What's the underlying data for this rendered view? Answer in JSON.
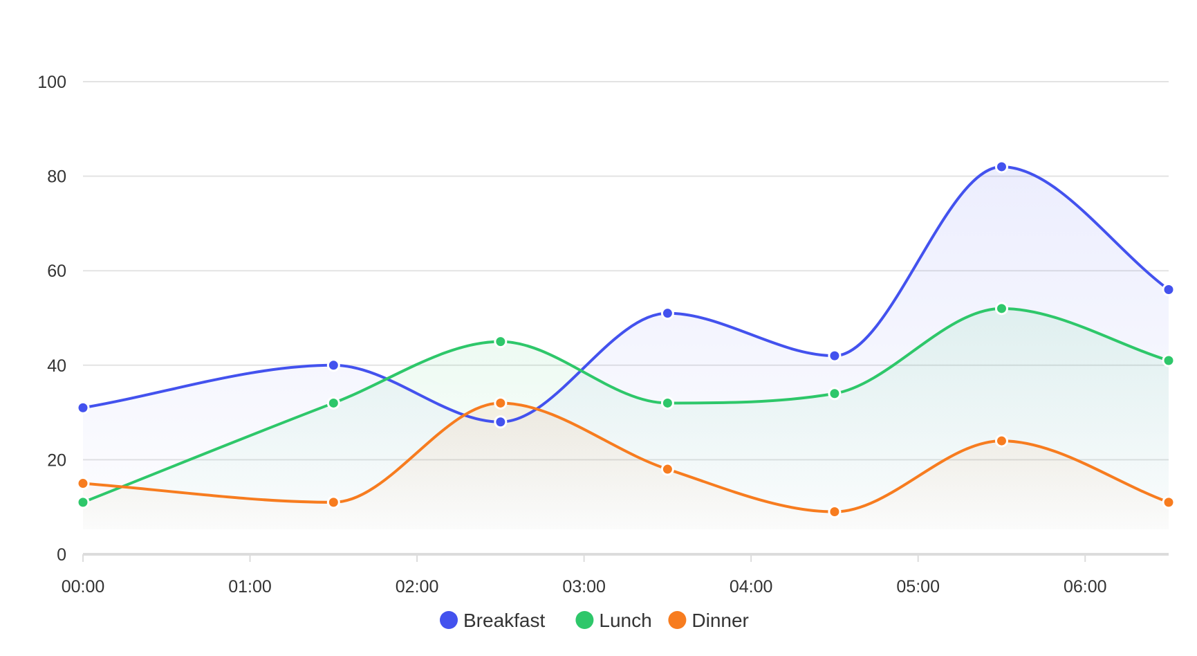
{
  "chart_data": {
    "type": "area",
    "x": [
      "00:00",
      "01:30",
      "02:30",
      "03:30",
      "04:30",
      "05:30",
      "06:30"
    ],
    "x_ticks": [
      "00:00",
      "01:00",
      "02:00",
      "03:00",
      "04:00",
      "05:00",
      "06:00"
    ],
    "y_ticks": [
      0,
      20,
      40,
      60,
      80,
      100
    ],
    "ylim": [
      0,
      100
    ],
    "grid": true,
    "smooth": true,
    "legend_position": "bottom-center",
    "series": [
      {
        "name": "Breakfast",
        "color": "#4352ee",
        "values": [
          31,
          40,
          28,
          51,
          42,
          82,
          56
        ]
      },
      {
        "name": "Lunch",
        "color": "#2ec76a",
        "values": [
          11,
          32,
          45,
          32,
          34,
          52,
          41
        ]
      },
      {
        "name": "Dinner",
        "color": "#f77c1f",
        "values": [
          15,
          11,
          32,
          18,
          9,
          24,
          11
        ]
      }
    ]
  }
}
